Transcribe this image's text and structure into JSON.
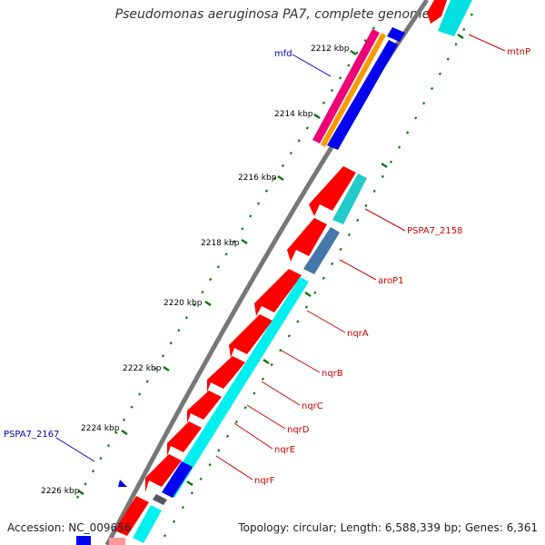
{
  "title": "Pseudomonas aeruginosa PA7, complete genome",
  "accession": "Accession: NC_009656",
  "summary": "Topology: circular; Length: 6,588,339 bp; Genes: 6,361",
  "ticks": [
    "2212 kbp",
    "2214 kbp",
    "2216 kbp",
    "2218 kbp",
    "2220 kbp",
    "2222 kbp",
    "2224 kbp",
    "2226 kbp"
  ],
  "gene_labels": [
    {
      "name": "mtnP",
      "color": "#d40000"
    },
    {
      "name": "mfd",
      "color": "#0000cc"
    },
    {
      "name": "PSPA7_2158",
      "color": "#d40000"
    },
    {
      "name": "aroP1",
      "color": "#d40000"
    },
    {
      "name": "nqrA",
      "color": "#d40000"
    },
    {
      "name": "nqrB",
      "color": "#d40000"
    },
    {
      "name": "nqrC",
      "color": "#d40000"
    },
    {
      "name": "nqrD",
      "color": "#d40000"
    },
    {
      "name": "nqrE",
      "color": "#d40000"
    },
    {
      "name": "nqrF",
      "color": "#d40000"
    },
    {
      "name": "PSPA7_2167",
      "color": "#0000cc"
    }
  ],
  "colors": {
    "forward": "#ff0000",
    "reverse": "#0000ee",
    "cyan": "#00ffff",
    "teal": "#00cccc",
    "magenta": "#ee0077",
    "orange": "#ff9900",
    "steel": "#4477aa",
    "backbone": "#777777",
    "tick": "#117711"
  }
}
